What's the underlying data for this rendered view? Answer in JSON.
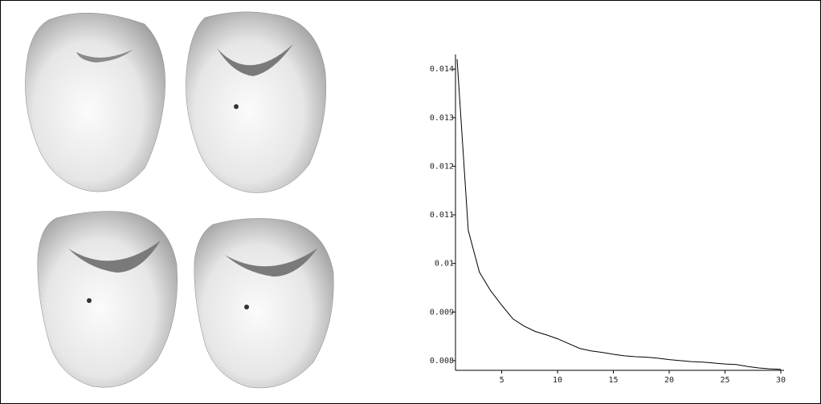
{
  "chart_data": {
    "type": "line",
    "color": "#000000",
    "x": [
      1,
      2,
      3,
      4,
      5,
      6,
      7,
      8,
      9,
      10,
      11,
      12,
      13,
      14,
      15,
      16,
      17,
      18,
      19,
      20,
      21,
      22,
      23,
      24,
      25,
      26,
      27,
      28,
      29,
      30
    ],
    "values": [
      0.0142,
      0.01068,
      0.00982,
      0.00944,
      0.00914,
      0.00886,
      0.00871,
      0.0086,
      0.00853,
      0.00845,
      0.00835,
      0.00825,
      0.0082,
      0.00817,
      0.00813,
      0.0081,
      0.00808,
      0.00807,
      0.00805,
      0.00802,
      0.008,
      0.00798,
      0.00797,
      0.00795,
      0.00793,
      0.00792,
      0.00788,
      0.00785,
      0.00783,
      0.00782
    ],
    "xlim": [
      1,
      30
    ],
    "xticks": [
      5,
      10,
      15,
      20,
      25,
      30
    ],
    "ylim": [
      0.0078,
      0.0143
    ],
    "yticks": [
      0.008,
      0.009,
      0.01,
      0.011,
      0.012,
      0.013,
      0.014
    ]
  }
}
